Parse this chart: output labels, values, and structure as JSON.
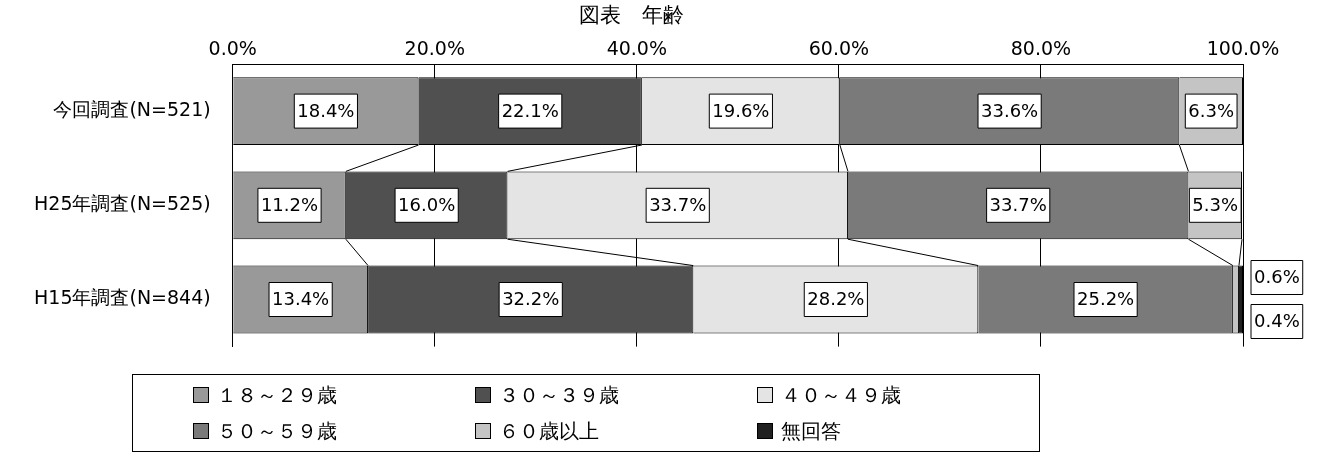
{
  "chart_data": {
    "type": "bar",
    "orientation": "horizontal",
    "stacked": true,
    "title": "図表　年齢",
    "categories": [
      "今回調査(N=521)",
      "H25年調査(N=525)",
      "H15年調査(N=844)"
    ],
    "series": [
      {
        "name": "１８～２９歳",
        "color": "#999999",
        "values": [
          18.4,
          11.2,
          13.4
        ],
        "value_labels": [
          "18.4%",
          "11.2%",
          "13.4%"
        ]
      },
      {
        "name": "３０～３９歳",
        "color": "#505050",
        "values": [
          22.1,
          16.0,
          32.2
        ],
        "value_labels": [
          "22.1%",
          "16.0%",
          "32.2%"
        ]
      },
      {
        "name": "４０～４９歳",
        "color": "#e4e4e4",
        "values": [
          19.6,
          33.7,
          28.2
        ],
        "value_labels": [
          "19.6%",
          "33.7%",
          "28.2%"
        ]
      },
      {
        "name": "５０～５９歳",
        "color": "#7a7a7a",
        "values": [
          33.6,
          33.7,
          25.2
        ],
        "value_labels": [
          "33.6%",
          "33.7%",
          "25.2%"
        ]
      },
      {
        "name": "６０歳以上",
        "color": "#c4c4c4",
        "values": [
          6.3,
          5.3,
          0.6
        ],
        "value_labels": [
          "6.3%",
          "5.3%",
          "0.6%"
        ]
      },
      {
        "name": "無回答",
        "color": "#202020",
        "values": [
          null,
          null,
          0.4
        ],
        "value_labels": [
          null,
          null,
          "0.4%"
        ]
      }
    ],
    "xlim": [
      0,
      100
    ],
    "xticks": [
      {
        "value": 0,
        "label": "0.0%"
      },
      {
        "value": 20,
        "label": "20.0%"
      },
      {
        "value": 40,
        "label": "40.0%"
      },
      {
        "value": 60,
        "label": "60.0%"
      },
      {
        "value": 80,
        "label": "80.0%"
      },
      {
        "value": 100,
        "label": "100.0%"
      }
    ],
    "grid": "x",
    "legend": "bottom"
  }
}
